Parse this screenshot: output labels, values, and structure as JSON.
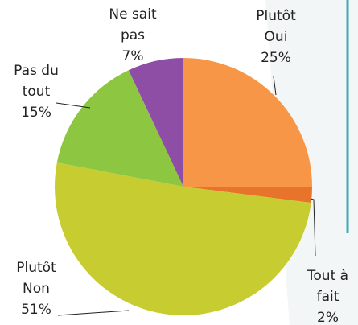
{
  "chart_data": {
    "type": "pie",
    "categories": [
      "Plutôt Oui",
      "Tout à fait",
      "Plutôt Non",
      "Pas du tout",
      "Ne sait pas"
    ],
    "values": [
      25,
      2,
      51,
      15,
      7
    ],
    "value_labels": [
      "25%",
      "2%",
      "51%",
      "15%",
      "7%"
    ],
    "colors": [
      "#f79646",
      "#e8732a",
      "#c7cd31",
      "#8dc640",
      "#8e4ea6"
    ]
  }
}
